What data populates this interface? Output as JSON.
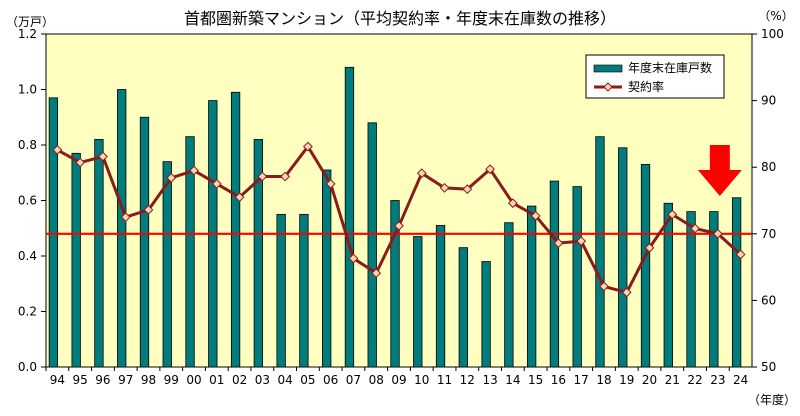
{
  "chart_data": {
    "type": "bar+line",
    "title": "首都圏新築マンション（平均契約率・年度末在庫数の推移）",
    "left_unit": "（万戸）",
    "right_unit": "（%）",
    "x_unit": "（年度）",
    "categories": [
      "94",
      "95",
      "96",
      "97",
      "98",
      "99",
      "00",
      "01",
      "02",
      "03",
      "04",
      "05",
      "06",
      "07",
      "08",
      "09",
      "10",
      "11",
      "12",
      "13",
      "14",
      "15",
      "16",
      "17",
      "18",
      "19",
      "20",
      "21",
      "22",
      "23",
      "24"
    ],
    "series": [
      {
        "name": "年度末在庫戸数",
        "type": "bar",
        "axis": "left",
        "color": "#007c7c",
        "values": [
          0.97,
          0.77,
          0.82,
          1.0,
          0.9,
          0.74,
          0.83,
          0.96,
          0.99,
          0.82,
          0.55,
          0.55,
          0.71,
          1.08,
          0.88,
          0.6,
          0.47,
          0.51,
          0.43,
          0.38,
          0.52,
          0.58,
          0.67,
          0.65,
          0.83,
          0.79,
          0.73,
          0.59,
          0.56,
          0.56,
          0.61
        ]
      },
      {
        "name": "契約率",
        "type": "line",
        "axis": "right",
        "color": "#8b1a1a",
        "marker_color": "#fcd5b4",
        "values": [
          82.6,
          80.7,
          81.6,
          72.5,
          73.6,
          78.4,
          79.5,
          77.5,
          75.5,
          78.6,
          78.6,
          83.1,
          77.5,
          66.3,
          64.1,
          71.2,
          79.1,
          76.9,
          76.7,
          79.7,
          74.6,
          72.7,
          68.6,
          68.9,
          62.1,
          61.2,
          67.9,
          72.9,
          70.8,
          70.0,
          66.9
        ]
      }
    ],
    "reference_line": {
      "value": 70,
      "axis": "right",
      "color": "#ff0000"
    },
    "callout_icon": "down-arrow-icon",
    "callout_color": "#ff0000",
    "callout_category": "23",
    "left_axis": {
      "min": 0,
      "max": 1.2,
      "step": 0.2,
      "tick_labels": [
        "0.0",
        "0.2",
        "0.4",
        "0.6",
        "0.8",
        "1.0",
        "1.2"
      ]
    },
    "right_axis": {
      "min": 50,
      "max": 100,
      "step": 10,
      "tick_labels": [
        "50",
        "60",
        "70",
        "80",
        "90",
        "100"
      ]
    },
    "plot_background": "#ffffc0",
    "grid": false,
    "legend_position": "top-right"
  }
}
